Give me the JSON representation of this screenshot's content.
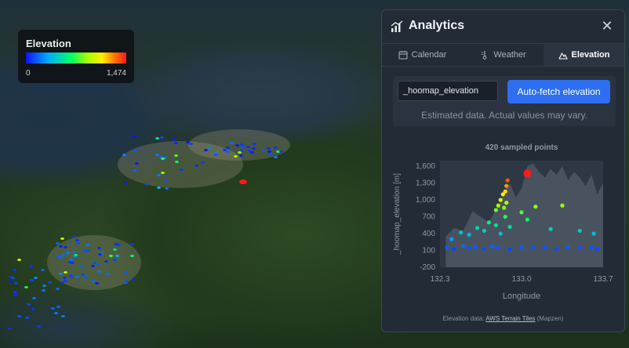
{
  "legend": {
    "title": "Elevation",
    "min_label": "0",
    "max_label": "1,474",
    "colors": [
      "#1010ff",
      "#00aaff",
      "#00ff66",
      "#aaff00",
      "#ffee00",
      "#ff7700",
      "#ff1a1a"
    ]
  },
  "panel": {
    "title": "Analytics",
    "close_label": "✕",
    "tabs": [
      {
        "label": "Calendar",
        "icon": "calendar-icon",
        "active": false
      },
      {
        "label": "Weather",
        "icon": "weather-icon",
        "active": false
      },
      {
        "label": "Elevation",
        "icon": "mountain-icon",
        "active": true
      }
    ],
    "field_value": "_hoomap_elevation",
    "fetch_button": "Auto-fetch elevation",
    "note": "Estimated data. Actual values may vary.",
    "footer_prefix": "Elevation data:",
    "footer_link": "AWS Terrain Tiles",
    "footer_suffix": "(Mapzen)"
  },
  "chart_data": {
    "type": "scatter",
    "title": "420 sampled points",
    "xlabel": "Longitude",
    "ylabel": "_hoomap_elevation [m]",
    "xlim": [
      132.3,
      133.7
    ],
    "ylim": [
      -200,
      1700
    ],
    "x_ticks": [
      "132.3",
      "133.0",
      "133.7"
    ],
    "y_ticks": [
      "-200",
      "100",
      "400",
      "700",
      "1,000",
      "1,300",
      "1,600"
    ],
    "background_profile": {
      "x": [
        132.35,
        132.42,
        132.5,
        132.58,
        132.65,
        132.72,
        132.8,
        132.85,
        132.9,
        132.95,
        133.0,
        133.05,
        133.1,
        133.15,
        133.2,
        133.25,
        133.3,
        133.35,
        133.4,
        133.45,
        133.5,
        133.55,
        133.6,
        133.65,
        133.7
      ],
      "y": [
        350,
        500,
        450,
        800,
        700,
        600,
        900,
        1150,
        1300,
        1050,
        1200,
        1600,
        1650,
        1500,
        1400,
        1550,
        1450,
        1600,
        1350,
        1500,
        1400,
        1250,
        1450,
        1100,
        1300
      ]
    },
    "series": [
      {
        "x": [
          132.36,
          132.42,
          132.5,
          132.55,
          132.6,
          132.68,
          132.75,
          132.8,
          132.9,
          133.0,
          133.1,
          133.2,
          133.3,
          133.4,
          133.5,
          133.6,
          133.65
        ],
        "values": [
          150,
          120,
          180,
          140,
          160,
          130,
          170,
          150,
          120,
          160,
          140,
          150,
          130,
          160,
          140,
          150,
          130
        ]
      },
      {
        "x": [
          132.4,
          132.48,
          132.55,
          132.62,
          132.68,
          132.72,
          132.78,
          132.82,
          132.86,
          132.9,
          133.05,
          133.25
        ],
        "values": [
          300,
          420,
          380,
          500,
          450,
          600,
          550,
          400,
          700,
          520,
          650,
          480
        ]
      },
      {
        "x": [
          132.78,
          132.8,
          132.82,
          132.84,
          132.85,
          132.87,
          133.0,
          133.12,
          133.35,
          133.5,
          133.62
        ],
        "values": [
          820,
          900,
          1000,
          1100,
          860,
          950,
          780,
          880,
          900,
          450,
          400
        ]
      },
      {
        "x": [
          132.86,
          132.87,
          132.88
        ],
        "values": [
          1150,
          1250,
          1350
        ]
      },
      {
        "x": [
          133.05
        ],
        "values": [
          1474
        ]
      }
    ]
  }
}
